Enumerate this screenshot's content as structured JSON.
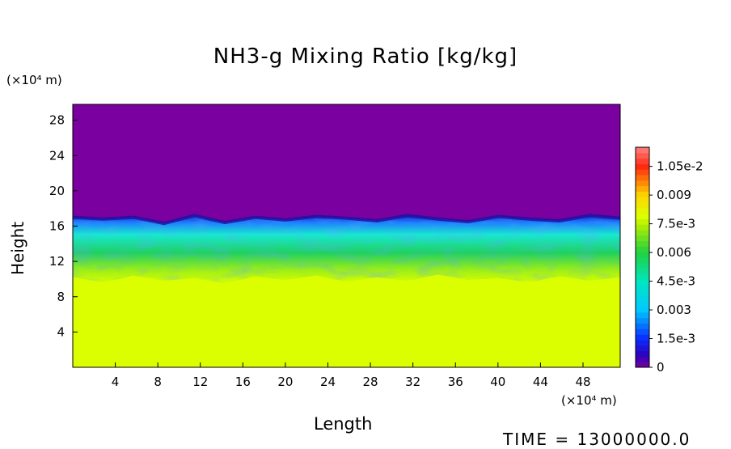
{
  "chart_data": {
    "type": "heatmap",
    "title": "NH3-g Mixing Ratio [kg/kg]",
    "xlabel": "Length",
    "ylabel": "Height",
    "x_unit": "(×10⁴ m)",
    "y_unit": "(×10⁴ m)",
    "xlim": [
      0,
      51.5
    ],
    "ylim": [
      0,
      29.8
    ],
    "x_ticks": [
      "4",
      "8",
      "12",
      "16",
      "20",
      "24",
      "28",
      "32",
      "36",
      "40",
      "44",
      "48"
    ],
    "y_ticks": [
      "4",
      "8",
      "12",
      "16",
      "20",
      "24",
      "28"
    ],
    "colorbar": {
      "min": 0,
      "max": 0.0115,
      "tick_labels": [
        "0",
        "1.5e-3",
        "0.003",
        "4.5e-3",
        "0.006",
        "7.5e-3",
        "0.009",
        "1.05e-2"
      ]
    },
    "layers": [
      {
        "name": "upper",
        "from_height": 17,
        "to_height": 29.8,
        "value": 0
      },
      {
        "name": "mixed",
        "from_height": 10,
        "to_height": 17,
        "value_range": [
          0.001,
          0.0075
        ]
      },
      {
        "name": "lower",
        "from_height": 0,
        "to_height": 10,
        "value": 0.0079
      }
    ],
    "boundary_heights": [
      17,
      16.8,
      17,
      16.3,
      17.2,
      16.4,
      17,
      16.7,
      17.1,
      16.9,
      16.6,
      17.2,
      16.8,
      16.5,
      17.1,
      16.8,
      16.6,
      17.2,
      16.9
    ],
    "lower_boundary_heights": [
      10.2,
      9.6,
      10.4,
      9.8,
      10.1,
      9.5,
      10.3,
      9.9,
      10.4,
      9.7,
      10.2,
      9.8,
      10.5,
      9.9,
      10.1,
      9.6,
      10.3,
      9.8,
      10.2
    ]
  },
  "footer": {
    "time_label": "TIME = 13000000.0"
  }
}
